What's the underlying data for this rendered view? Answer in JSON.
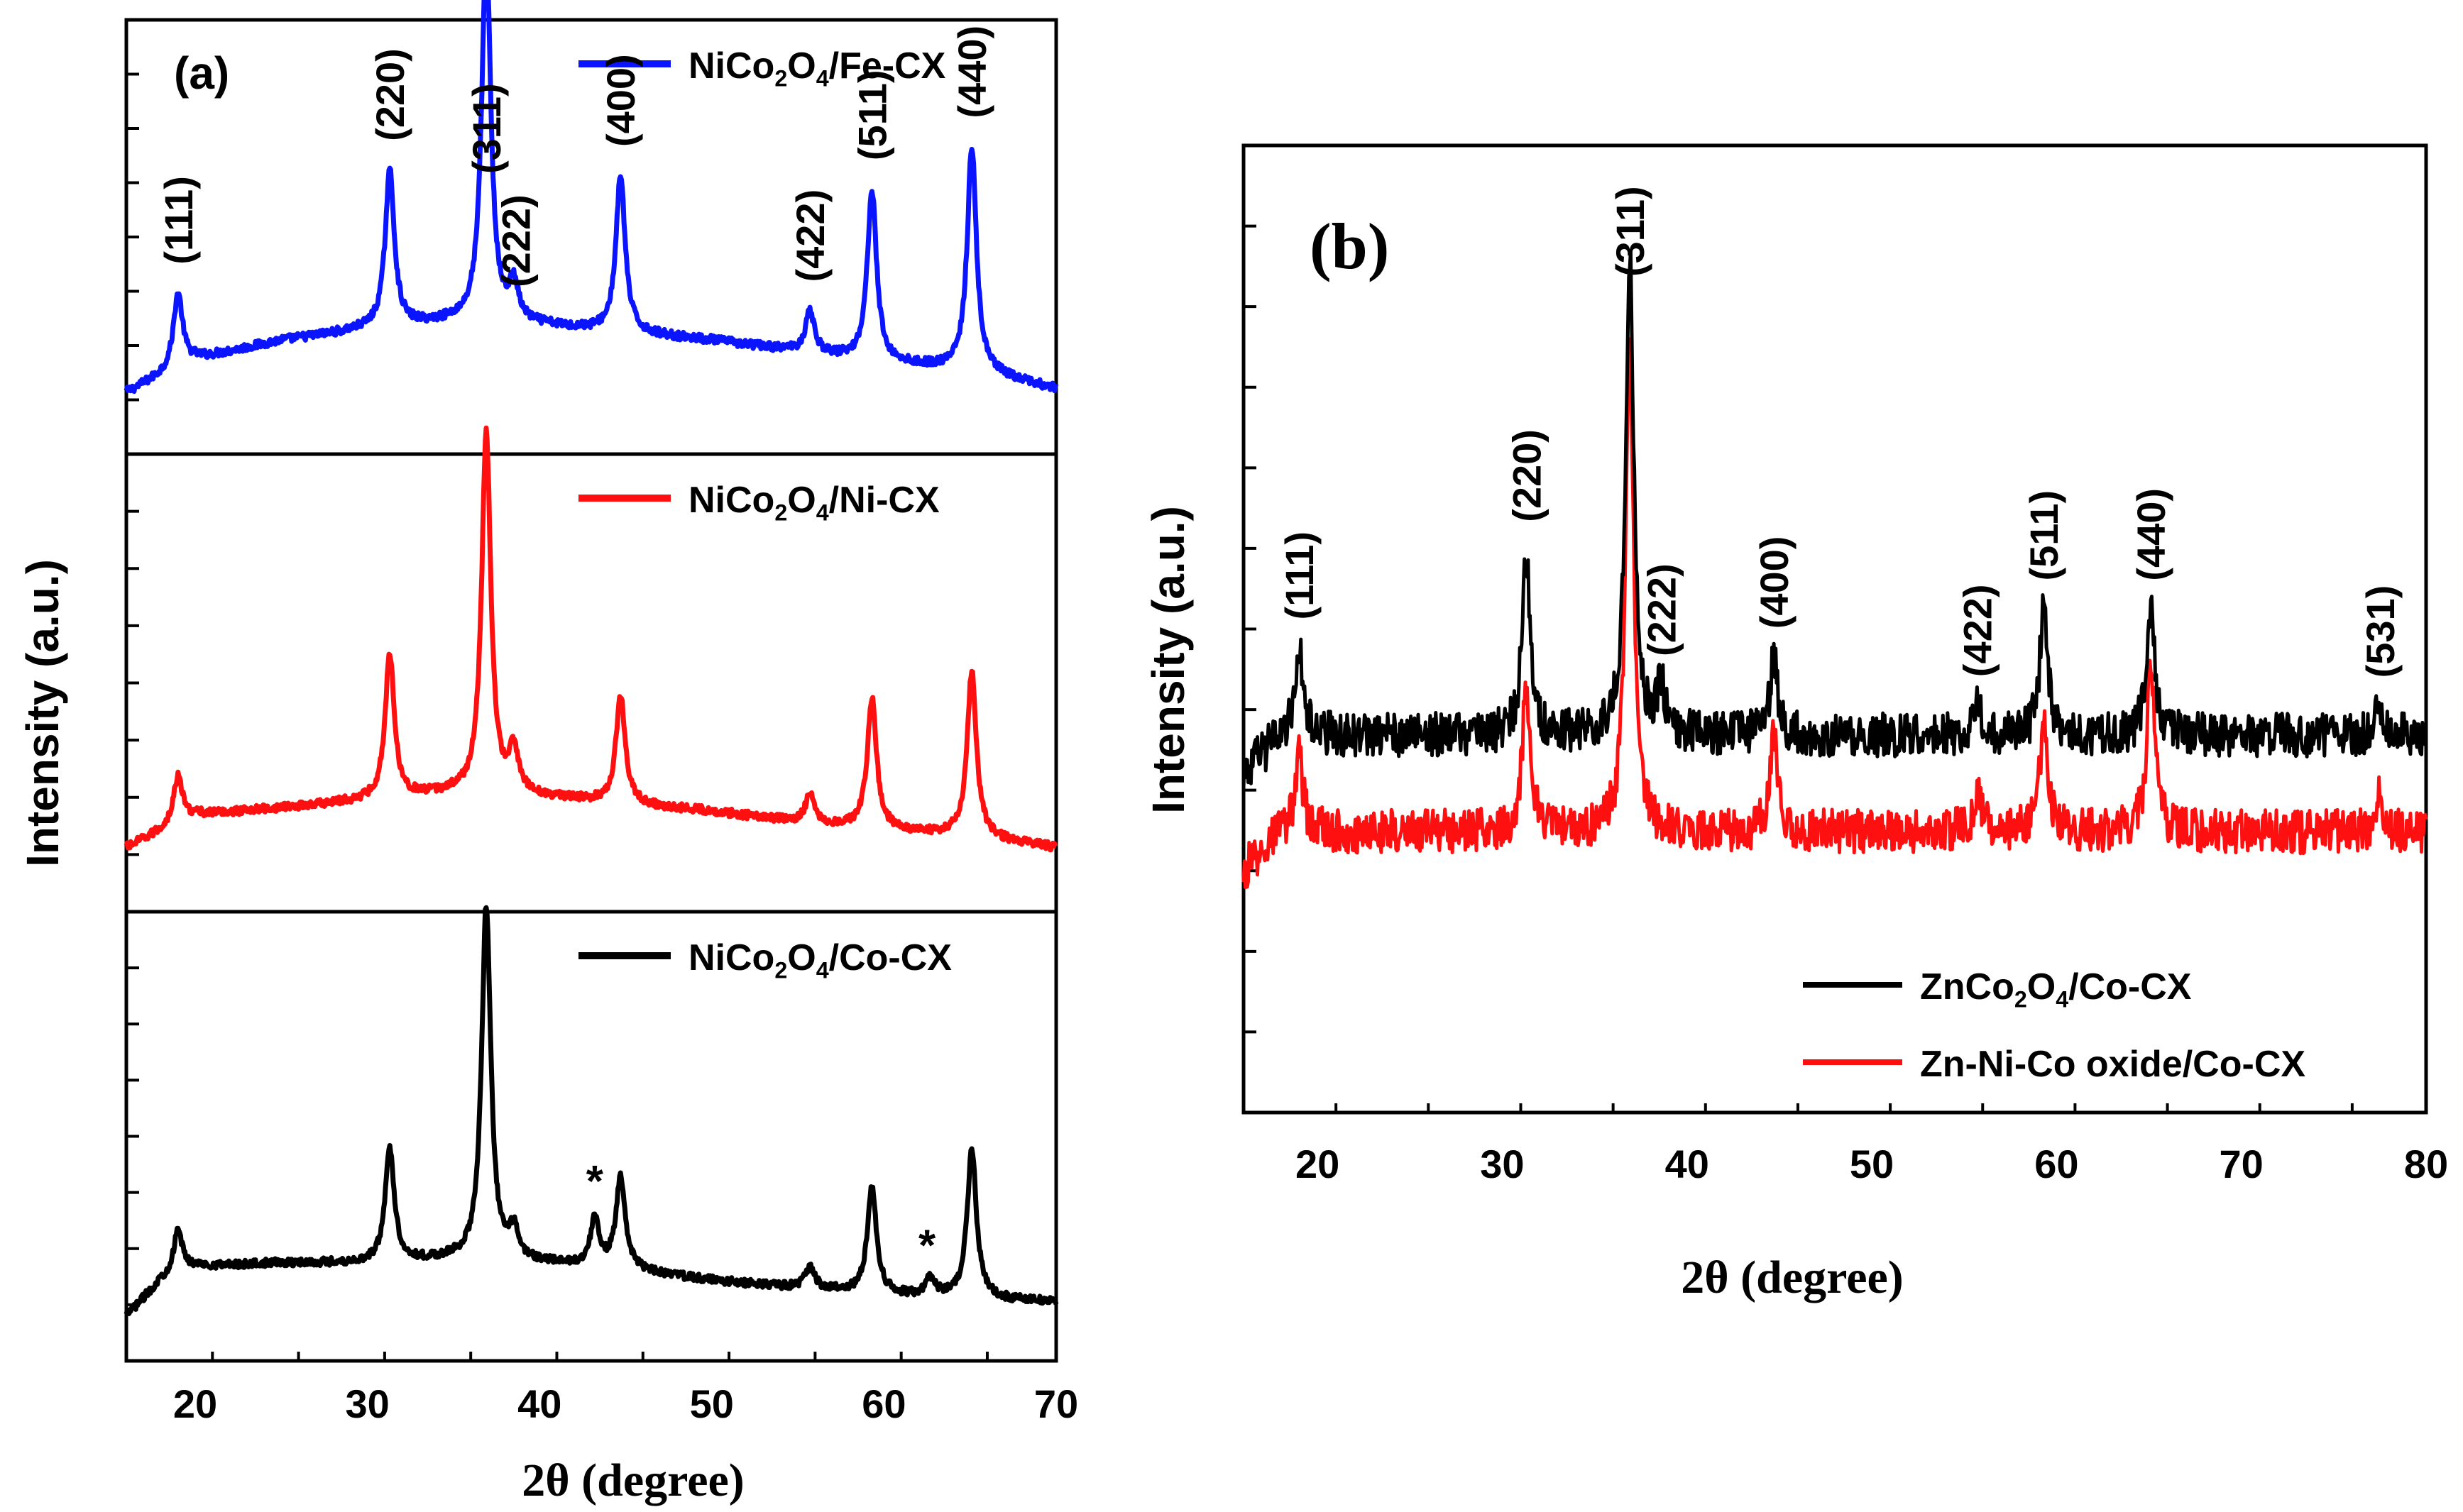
{
  "chart_data": [
    {
      "type": "line",
      "panel_label": "(a)",
      "xlabel": "2θ (degree)",
      "ylabel": "Intensity (a.u.)",
      "xlim": [
        16,
        70
      ],
      "x_ticks": [
        20,
        30,
        40,
        50,
        60,
        70
      ],
      "subplots": [
        {
          "legend": {
            "label": "NiCo2O4/Fe-CX",
            "base": "NiCo",
            "sub1": "2",
            "mid": "O",
            "sub2": "4",
            "tail": "/Fe-CX",
            "color": "#0a14ff"
          },
          "color": "#0a14ff",
          "baseline_points": [
            [
              16,
              0.06
            ],
            [
              20,
              0.15
            ],
            [
              25,
              0.2
            ],
            [
              30,
              0.23
            ],
            [
              35,
              0.25
            ],
            [
              40,
              0.24
            ],
            [
              45,
              0.22
            ],
            [
              50,
              0.2
            ],
            [
              55,
              0.17
            ],
            [
              60,
              0.14
            ],
            [
              65,
              0.12
            ],
            [
              70,
              0.07
            ]
          ],
          "peaks": [
            [
              19.0,
              0.2
            ],
            [
              31.3,
              0.42
            ],
            [
              36.9,
              1.0
            ],
            [
              38.5,
              0.1
            ],
            [
              44.7,
              0.42
            ],
            [
              55.7,
              0.11
            ],
            [
              59.3,
              0.46
            ],
            [
              65.1,
              0.6
            ]
          ],
          "peak_labels": [
            {
              "x": 19.0,
              "label": "(111)"
            },
            {
              "x": 31.3,
              "label": "(220)"
            },
            {
              "x": 36.9,
              "label": "(311)"
            },
            {
              "x": 38.6,
              "label": "(222)"
            },
            {
              "x": 44.7,
              "label": "(400)"
            },
            {
              "x": 55.7,
              "label": "(422)"
            },
            {
              "x": 59.3,
              "label": "(511)"
            },
            {
              "x": 65.1,
              "label": "(440)"
            }
          ]
        },
        {
          "legend": {
            "label": "NiCo2O4/Ni-CX",
            "base": "NiCo",
            "sub1": "2",
            "mid": "O",
            "sub2": "4",
            "tail": "/Ni-CX",
            "color": "#ff1010"
          },
          "color": "#ff1010",
          "baseline_points": [
            [
              16,
              0.03
            ],
            [
              20,
              0.12
            ],
            [
              25,
              0.14
            ],
            [
              30,
              0.16
            ],
            [
              35,
              0.18
            ],
            [
              40,
              0.17
            ],
            [
              45,
              0.15
            ],
            [
              50,
              0.13
            ],
            [
              55,
              0.1
            ],
            [
              60,
              0.08
            ],
            [
              65,
              0.06
            ],
            [
              70,
              0.03
            ]
          ],
          "peaks": [
            [
              19.0,
              0.13
            ],
            [
              31.3,
              0.4
            ],
            [
              36.9,
              1.0
            ],
            [
              38.5,
              0.12
            ],
            [
              44.7,
              0.3
            ],
            [
              55.7,
              0.08
            ],
            [
              59.3,
              0.36
            ],
            [
              65.1,
              0.46
            ]
          ],
          "peak_labels": []
        },
        {
          "legend": {
            "label": "NiCo2O4/Co-CX",
            "base": "NiCo",
            "sub1": "2",
            "mid": "O",
            "sub2": "4",
            "tail": "/Co-CX",
            "color": "#000000"
          },
          "color": "#000000",
          "baseline_points": [
            [
              16,
              0.0
            ],
            [
              18,
              0.1
            ],
            [
              20,
              0.14
            ],
            [
              25,
              0.15
            ],
            [
              30,
              0.15
            ],
            [
              35,
              0.16
            ],
            [
              40,
              0.15
            ],
            [
              45,
              0.13
            ],
            [
              50,
              0.1
            ],
            [
              55,
              0.08
            ],
            [
              60,
              0.06
            ],
            [
              65,
              0.05
            ],
            [
              70,
              0.04
            ]
          ],
          "peaks": [
            [
              19.0,
              0.12
            ],
            [
              31.3,
              0.32
            ],
            [
              36.9,
              1.0
            ],
            [
              38.5,
              0.08
            ],
            [
              43.2,
              0.13
            ],
            [
              44.7,
              0.26
            ],
            [
              55.7,
              0.06
            ],
            [
              59.3,
              0.3
            ],
            [
              62.7,
              0.05
            ],
            [
              65.1,
              0.42
            ]
          ],
          "annotations": [
            {
              "x": 43.2,
              "label": "*"
            },
            {
              "x": 62.5,
              "label": "*"
            }
          ]
        }
      ]
    },
    {
      "type": "line",
      "panel_label": "(b)",
      "xlabel": "2θ (degree)",
      "ylabel": "Intensity (a.u.)",
      "xlim": [
        16,
        80
      ],
      "x_ticks": [
        20,
        30,
        40,
        50,
        60,
        70,
        80
      ],
      "series": [
        {
          "label": "ZnCo2O4/Co-CX",
          "base": "ZnCo",
          "sub1": "2",
          "mid": "O",
          "sub2": "4",
          "tail": "/Co-CX",
          "color": "#000000",
          "baseline": 0.39,
          "peaks": [
            [
              19.0,
              0.09
            ],
            [
              31.3,
              0.19
            ],
            [
              36.9,
              0.5
            ],
            [
              38.6,
              0.05
            ],
            [
              44.7,
              0.08
            ],
            [
              55.7,
              0.03
            ],
            [
              59.3,
              0.13
            ],
            [
              65.1,
              0.13
            ],
            [
              77.5,
              0.03
            ]
          ]
        },
        {
          "label": "Zn-Ni-Co oxide/Co-CX",
          "base": "Zn-Ni-Co oxide/Co-CX",
          "sub1": "",
          "mid": "",
          "sub2": "",
          "tail": "",
          "color": "#ff1010",
          "baseline": 0.29,
          "peaks": [
            [
              19.0,
              0.08
            ],
            [
              31.3,
              0.15
            ],
            [
              36.9,
              0.5
            ],
            [
              44.7,
              0.1
            ],
            [
              55.7,
              0.04
            ],
            [
              59.3,
              0.11
            ],
            [
              65.1,
              0.17
            ],
            [
              77.5,
              0.04
            ]
          ]
        }
      ],
      "peak_labels": [
        {
          "x": 19.0,
          "label": "(111)"
        },
        {
          "x": 31.3,
          "label": "(220)"
        },
        {
          "x": 36.9,
          "label": "(311)"
        },
        {
          "x": 38.6,
          "label": "(222)"
        },
        {
          "x": 44.7,
          "label": "(400)"
        },
        {
          "x": 55.7,
          "label": "(422)"
        },
        {
          "x": 59.3,
          "label": "(511)"
        },
        {
          "x": 65.1,
          "label": "(440)"
        },
        {
          "x": 77.5,
          "label": "(531)"
        }
      ]
    }
  ]
}
